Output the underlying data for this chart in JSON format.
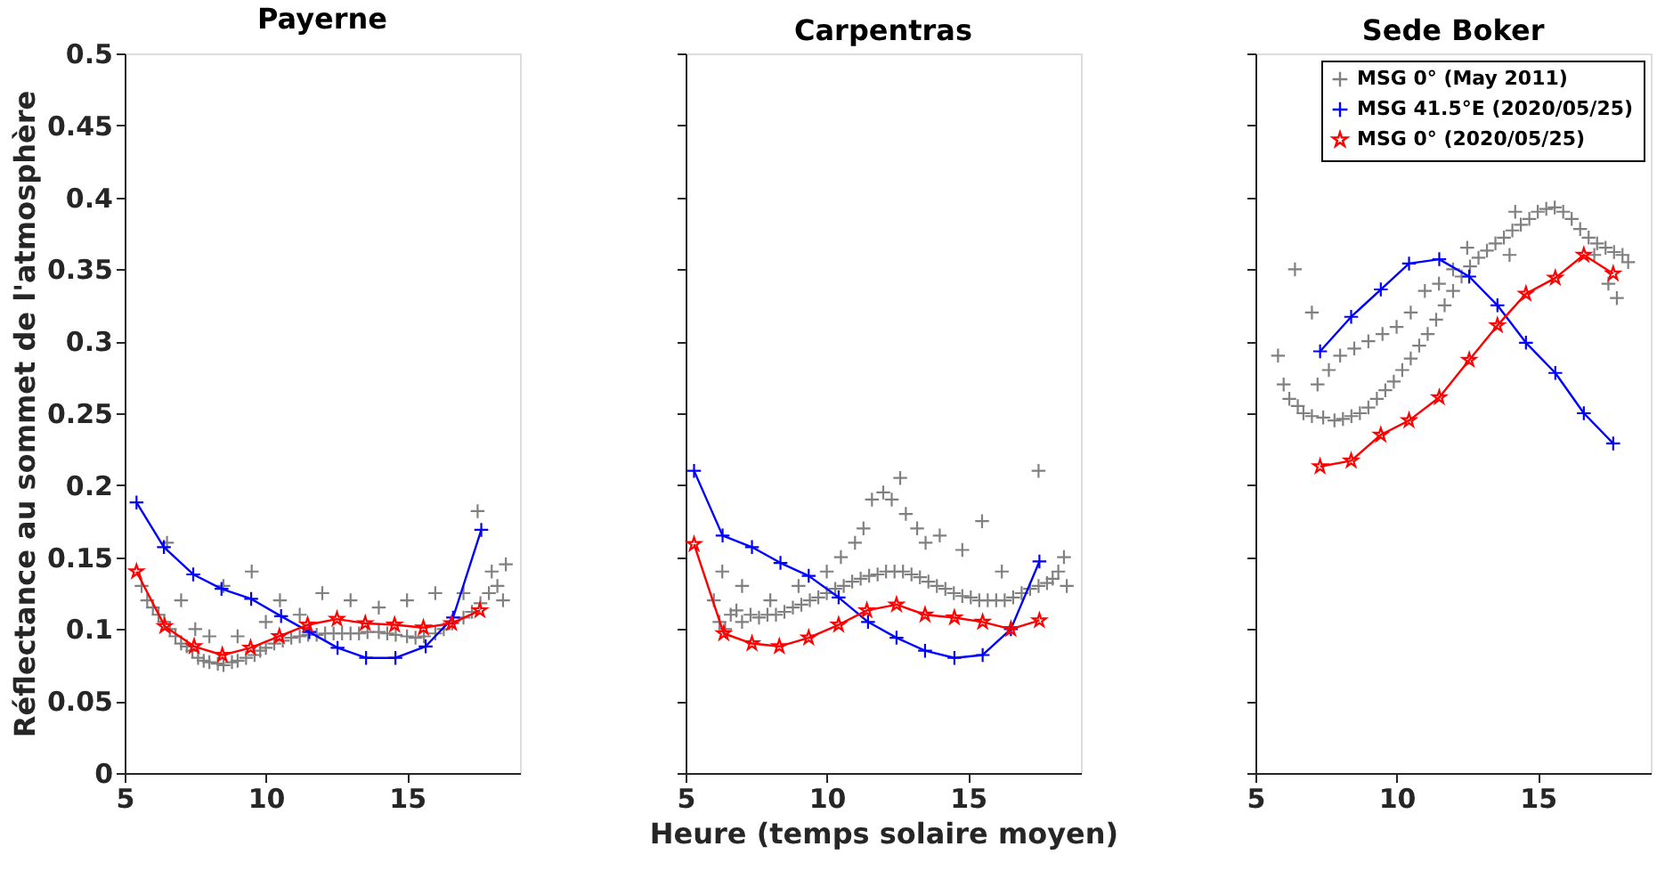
{
  "chart_data": [
    {
      "type": "scatter",
      "title": "Payerne",
      "ylabel": "Réflectance au sommet de l'atmosphère",
      "xlim": [
        5,
        19
      ],
      "xticks": [
        5,
        10,
        15
      ],
      "ylim": [
        0,
        0.5
      ],
      "yticks": [
        0,
        0.05,
        0.1,
        0.15,
        0.2,
        0.25,
        0.3,
        0.35,
        0.4,
        0.45,
        0.5
      ],
      "grid": false,
      "legend": false,
      "series": [
        {
          "color": "#808080",
          "marker": "cross",
          "x": [
            5.6,
            5.8,
            6.0,
            6.2,
            6.4,
            6.5,
            6.6,
            6.8,
            7.0,
            7.0,
            7.2,
            7.4,
            7.5,
            7.6,
            7.8,
            8.0,
            8.0,
            8.3,
            8.5,
            8.5,
            8.8,
            9.0,
            9.0,
            9.3,
            9.5,
            9.6,
            9.8,
            10.0,
            10.0,
            10.3,
            10.5,
            10.6,
            10.9,
            11.2,
            11.2,
            11.5,
            11.8,
            12.0,
            12.1,
            12.4,
            12.7,
            13.0,
            13.0,
            13.3,
            13.6,
            14.0,
            14.0,
            14.3,
            14.6,
            15.0,
            15.0,
            15.3,
            15.6,
            16.0,
            16.0,
            16.3,
            16.6,
            17.0,
            17.0,
            17.3,
            17.5,
            17.6,
            17.9,
            18.0,
            18.2,
            18.4,
            18.5
          ],
          "values": [
            0.13,
            0.12,
            0.115,
            0.11,
            0.105,
            0.16,
            0.1,
            0.095,
            0.09,
            0.12,
            0.088,
            0.085,
            0.1,
            0.08,
            0.078,
            0.077,
            0.095,
            0.076,
            0.075,
            0.13,
            0.077,
            0.078,
            0.095,
            0.08,
            0.14,
            0.082,
            0.085,
            0.087,
            0.105,
            0.09,
            0.12,
            0.092,
            0.094,
            0.095,
            0.11,
            0.096,
            0.096,
            0.125,
            0.097,
            0.097,
            0.097,
            0.097,
            0.12,
            0.097,
            0.098,
            0.098,
            0.115,
            0.097,
            0.096,
            0.095,
            0.12,
            0.094,
            0.095,
            0.097,
            0.125,
            0.1,
            0.104,
            0.108,
            0.125,
            0.112,
            0.182,
            0.118,
            0.125,
            0.14,
            0.13,
            0.12,
            0.145
          ]
        },
        {
          "type": "line",
          "color": "#0000ff",
          "marker": "cross",
          "x": [
            5.42,
            6.39,
            7.43,
            8.43,
            9.48,
            10.54,
            11.54,
            12.54,
            13.55,
            14.59,
            15.66,
            16.63,
            17.63
          ],
          "values": [
            0.188,
            0.157,
            0.138,
            0.128,
            0.121,
            0.109,
            0.098,
            0.087,
            0.08,
            0.08,
            0.088,
            0.108,
            0.169
          ]
        },
        {
          "type": "line",
          "color": "#ff0000",
          "marker": "star",
          "x": [
            5.42,
            6.42,
            7.46,
            8.46,
            9.46,
            10.48,
            11.48,
            12.52,
            13.52,
            14.56,
            15.58,
            16.58,
            17.58
          ],
          "values": [
            0.14,
            0.102,
            0.088,
            0.082,
            0.087,
            0.095,
            0.103,
            0.107,
            0.104,
            0.103,
            0.101,
            0.104,
            0.113
          ]
        }
      ]
    },
    {
      "type": "scatter",
      "title": "Carpentras",
      "xlabel": "Heure (temps solaire moyen)",
      "xlim": [
        5,
        19
      ],
      "xticks": [
        5,
        10,
        15
      ],
      "ylim": [
        0,
        0.5
      ],
      "yticks": [
        0,
        0.05,
        0.1,
        0.15,
        0.2,
        0.25,
        0.3,
        0.35,
        0.4,
        0.45,
        0.5
      ],
      "grid": false,
      "legend": false,
      "tick_labels": "x",
      "series": [
        {
          "color": "#808080",
          "marker": "cross",
          "x": [
            6.0,
            6.2,
            6.3,
            6.4,
            6.6,
            6.8,
            7.0,
            7.0,
            7.3,
            7.6,
            7.9,
            8.0,
            8.2,
            8.5,
            8.8,
            9.0,
            9.1,
            9.4,
            9.7,
            10.0,
            10.0,
            10.3,
            10.5,
            10.6,
            10.9,
            11.0,
            11.2,
            11.3,
            11.5,
            11.6,
            11.8,
            12.0,
            12.1,
            12.3,
            12.4,
            12.6,
            12.7,
            12.8,
            13.0,
            13.2,
            13.3,
            13.5,
            13.6,
            13.9,
            14.0,
            14.2,
            14.5,
            14.8,
            14.8,
            15.1,
            15.4,
            15.5,
            15.7,
            16.0,
            16.2,
            16.3,
            16.6,
            16.9,
            17.2,
            17.5,
            17.5,
            17.8,
            18.0,
            18.2,
            18.4,
            18.5
          ],
          "values": [
            0.12,
            0.105,
            0.14,
            0.1,
            0.11,
            0.113,
            0.105,
            0.13,
            0.11,
            0.108,
            0.11,
            0.12,
            0.11,
            0.112,
            0.115,
            0.13,
            0.117,
            0.12,
            0.122,
            0.125,
            0.14,
            0.128,
            0.15,
            0.13,
            0.133,
            0.16,
            0.135,
            0.17,
            0.137,
            0.19,
            0.138,
            0.195,
            0.14,
            0.19,
            0.14,
            0.205,
            0.14,
            0.18,
            0.138,
            0.17,
            0.136,
            0.16,
            0.133,
            0.13,
            0.165,
            0.128,
            0.125,
            0.155,
            0.123,
            0.122,
            0.12,
            0.175,
            0.12,
            0.12,
            0.14,
            0.12,
            0.122,
            0.125,
            0.128,
            0.21,
            0.13,
            0.132,
            0.135,
            0.14,
            0.15,
            0.13
          ]
        },
        {
          "type": "line",
          "color": "#0000ff",
          "marker": "cross",
          "x": [
            5.3,
            6.31,
            7.35,
            8.36,
            9.36,
            10.42,
            11.46,
            12.47,
            13.48,
            14.52,
            15.52,
            16.52,
            17.53
          ],
          "values": [
            0.21,
            0.165,
            0.157,
            0.146,
            0.137,
            0.122,
            0.105,
            0.094,
            0.085,
            0.08,
            0.082,
            0.1,
            0.147
          ]
        },
        {
          "type": "line",
          "color": "#ff0000",
          "marker": "star",
          "x": [
            5.3,
            6.35,
            7.35,
            8.32,
            9.36,
            10.42,
            11.42,
            12.47,
            13.48,
            14.52,
            15.52,
            16.52,
            17.53
          ],
          "values": [
            0.159,
            0.097,
            0.09,
            0.088,
            0.094,
            0.103,
            0.113,
            0.117,
            0.11,
            0.108,
            0.105,
            0.1,
            0.106
          ]
        }
      ]
    },
    {
      "type": "scatter",
      "title": "Sede Boker",
      "xlim": [
        5,
        19
      ],
      "xticks": [
        5,
        10,
        15
      ],
      "ylim": [
        0,
        0.5
      ],
      "yticks": [
        0,
        0.05,
        0.1,
        0.15,
        0.2,
        0.25,
        0.3,
        0.35,
        0.4,
        0.45,
        0.5
      ],
      "grid": false,
      "legend": "top right",
      "tick_labels": "x",
      "series": [
        {
          "name": "MSG 0° (May 2011)",
          "color": "#808080",
          "marker": "cross",
          "x": [
            5.8,
            6.0,
            6.2,
            6.4,
            6.5,
            6.7,
            7.0,
            7.0,
            7.2,
            7.4,
            7.6,
            7.8,
            8.0,
            8.1,
            8.4,
            8.5,
            8.7,
            9.0,
            9.0,
            9.3,
            9.5,
            9.6,
            9.9,
            10.0,
            10.2,
            10.5,
            10.5,
            10.8,
            11.0,
            11.1,
            11.4,
            11.5,
            11.7,
            12.0,
            12.0,
            12.3,
            12.5,
            12.6,
            12.9,
            13.2,
            13.5,
            13.8,
            14.0,
            14.2,
            14.1,
            14.4,
            14.7,
            15.0,
            15.3,
            15.6,
            15.9,
            16.2,
            16.5,
            16.8,
            17.0,
            17.1,
            17.4,
            17.7,
            18.0,
            17.5,
            17.8,
            18.2
          ],
          "values": [
            0.29,
            0.27,
            0.26,
            0.35,
            0.255,
            0.25,
            0.32,
            0.248,
            0.27,
            0.247,
            0.28,
            0.245,
            0.29,
            0.246,
            0.248,
            0.295,
            0.25,
            0.3,
            0.254,
            0.26,
            0.305,
            0.266,
            0.272,
            0.31,
            0.28,
            0.32,
            0.288,
            0.297,
            0.335,
            0.305,
            0.315,
            0.34,
            0.325,
            0.335,
            0.35,
            0.345,
            0.365,
            0.352,
            0.358,
            0.363,
            0.368,
            0.372,
            0.36,
            0.39,
            0.377,
            0.381,
            0.385,
            0.39,
            0.392,
            0.393,
            0.39,
            0.385,
            0.378,
            0.372,
            0.36,
            0.368,
            0.365,
            0.362,
            0.36,
            0.34,
            0.33,
            0.355
          ]
        },
        {
          "type": "line",
          "name": "MSG 41.5°E (2020/05/25)",
          "color": "#0000ff",
          "marker": "cross",
          "x": [
            7.29,
            8.39,
            9.44,
            10.44,
            11.51,
            12.57,
            13.57,
            14.58,
            15.62,
            16.63,
            17.67
          ],
          "values": [
            0.293,
            0.317,
            0.336,
            0.354,
            0.357,
            0.345,
            0.325,
            0.299,
            0.278,
            0.25,
            0.229
          ]
        },
        {
          "type": "line",
          "name": "MSG 0° (2020/05/25)",
          "color": "#ff0000",
          "marker": "star",
          "x": [
            7.29,
            8.39,
            9.44,
            10.44,
            11.51,
            12.57,
            13.57,
            14.58,
            15.62,
            16.63,
            17.67
          ],
          "values": [
            0.213,
            0.217,
            0.235,
            0.245,
            0.261,
            0.287,
            0.311,
            0.333,
            0.344,
            0.36,
            0.347
          ]
        }
      ]
    }
  ]
}
